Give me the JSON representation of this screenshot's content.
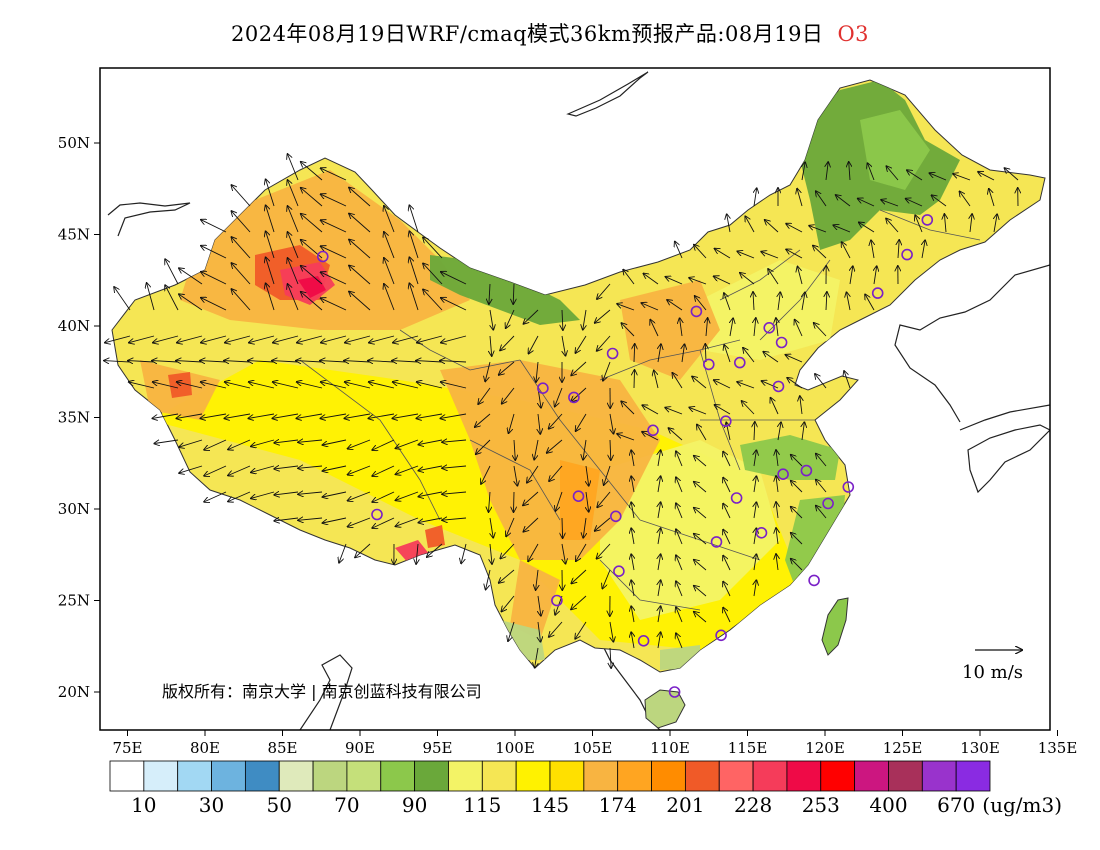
{
  "title": {
    "main": "2024年08月19日WRF/cmaq模式36km预报产品:08月19日",
    "pollutant": "O3"
  },
  "map": {
    "lon_ticks": [
      "75E",
      "80E",
      "85E",
      "90E",
      "95E",
      "100E",
      "105E",
      "110E",
      "115E",
      "120E",
      "125E",
      "130E",
      "135E"
    ],
    "lat_ticks": [
      "50N",
      "45N",
      "40N",
      "35N",
      "30N",
      "25N",
      "20N"
    ],
    "copyright": "版权所有：南京大学 | 南京创蓝科技有限公司",
    "wind_reference": "10 m/s"
  },
  "colorbar": {
    "colors": [
      "#ffffff",
      "#d6eefa",
      "#a2d8f3",
      "#6db3df",
      "#3f8cc3",
      "#dfeabb",
      "#bcd67f",
      "#c5e07a",
      "#8cc84b",
      "#6aa83a",
      "#f3f366",
      "#f5e654",
      "#fff200",
      "#ffe000",
      "#f8b441",
      "#ffa521",
      "#ff8c00",
      "#f05a28",
      "#ff6464",
      "#f53c5a",
      "#ef0a47",
      "#ff0000",
      "#cc1680",
      "#a8305a",
      "#9933cc",
      "#8a2be2"
    ],
    "labels": [
      "10",
      "30",
      "50",
      "70",
      "90",
      "115",
      "145",
      "174",
      "201",
      "228",
      "253",
      "400",
      "670"
    ],
    "unit": "(ug/m3)"
  },
  "legend_colors": {
    "background_region": "#f5e654",
    "low_region": "#6aa83a",
    "high_region": "#f8b441",
    "hotspot": "#f53c5a",
    "station_marker": "#7a21c7"
  },
  "stations": [
    {
      "lon": 87.6,
      "lat": 43.8
    },
    {
      "lon": 91.1,
      "lat": 29.7
    },
    {
      "lon": 101.8,
      "lat": 36.6
    },
    {
      "lon": 103.8,
      "lat": 36.1
    },
    {
      "lon": 106.3,
      "lat": 38.5
    },
    {
      "lon": 111.7,
      "lat": 40.8
    },
    {
      "lon": 108.9,
      "lat": 34.3
    },
    {
      "lon": 104.1,
      "lat": 30.7
    },
    {
      "lon": 106.5,
      "lat": 29.6
    },
    {
      "lon": 106.7,
      "lat": 26.6
    },
    {
      "lon": 102.7,
      "lat": 25.0
    },
    {
      "lon": 108.3,
      "lat": 22.8
    },
    {
      "lon": 110.3,
      "lat": 20.0
    },
    {
      "lon": 113.3,
      "lat": 23.1
    },
    {
      "lon": 113.0,
      "lat": 28.2
    },
    {
      "lon": 114.3,
      "lat": 30.6
    },
    {
      "lon": 115.9,
      "lat": 28.7
    },
    {
      "lon": 113.6,
      "lat": 34.8
    },
    {
      "lon": 117.0,
      "lat": 36.7
    },
    {
      "lon": 114.5,
      "lat": 38.0
    },
    {
      "lon": 112.5,
      "lat": 37.9
    },
    {
      "lon": 116.4,
      "lat": 39.9
    },
    {
      "lon": 117.2,
      "lat": 39.1
    },
    {
      "lon": 117.3,
      "lat": 31.9
    },
    {
      "lon": 118.8,
      "lat": 32.1
    },
    {
      "lon": 120.2,
      "lat": 30.3
    },
    {
      "lon": 121.5,
      "lat": 31.2
    },
    {
      "lon": 119.3,
      "lat": 26.1
    },
    {
      "lon": 123.4,
      "lat": 41.8
    },
    {
      "lon": 125.3,
      "lat": 43.9
    },
    {
      "lon": 126.6,
      "lat": 45.8
    }
  ]
}
